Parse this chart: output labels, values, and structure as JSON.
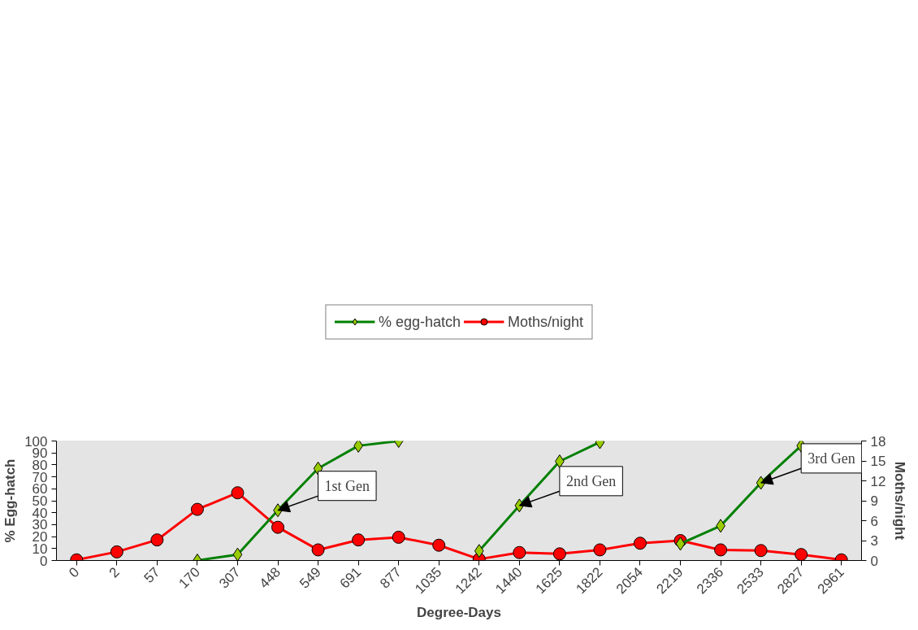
{
  "chart_data": {
    "type": "line",
    "xlabel": "Degree-Days",
    "ylabel": "% Egg-hatch",
    "y2label": "Moths/night",
    "categories": [
      "0",
      "2",
      "57",
      "170",
      "307",
      "448",
      "549",
      "691",
      "877",
      "1035",
      "1242",
      "1440",
      "1625",
      "1822",
      "2054",
      "2219",
      "2336",
      "2533",
      "2827",
      "2961"
    ],
    "series": [
      {
        "name": "% egg-hatch",
        "color": "#008000",
        "marker": "diamond",
        "values": [
          null,
          null,
          null,
          0,
          5,
          42,
          77,
          96,
          100,
          null,
          8,
          46,
          83,
          99,
          null,
          14,
          29,
          65,
          96,
          null
        ]
      },
      {
        "name": "Moths/night",
        "color": "#ff0000",
        "marker": "circle",
        "axis": "y2",
        "values": [
          0.1,
          1.3,
          3.1,
          7.7,
          10.2,
          5.0,
          1.6,
          3.1,
          3.5,
          2.3,
          0.2,
          1.2,
          1.0,
          1.6,
          2.6,
          3.0,
          1.6,
          1.5,
          0.9,
          0.1
        ]
      }
    ],
    "ylim": [
      0,
      100
    ],
    "yticks": [
      0,
      10,
      20,
      30,
      40,
      50,
      60,
      70,
      80,
      90,
      100
    ],
    "y2lim": [
      0,
      18
    ],
    "y2ticks": [
      0,
      3,
      6,
      9,
      12,
      15,
      18
    ],
    "legend": "top",
    "annotations": [
      {
        "text": "1st Gen",
        "x": "448",
        "y": 42
      },
      {
        "text": "2nd Gen",
        "x": "1440",
        "y": 46
      },
      {
        "text": "3rd Gen",
        "x": "2533",
        "y": 65
      }
    ]
  }
}
